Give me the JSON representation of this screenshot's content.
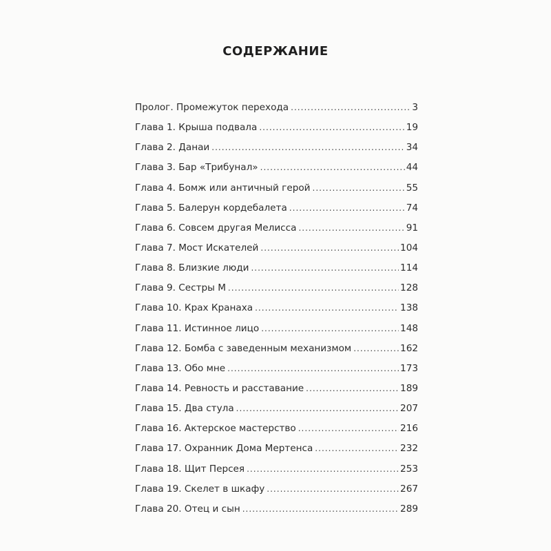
{
  "title": "СОДЕРЖАНИЕ",
  "entries": [
    {
      "label": "Пролог. Промежуток перехода",
      "page": "3"
    },
    {
      "label": "Глава 1. Крыша подвала",
      "page": "19"
    },
    {
      "label": "Глава 2. Данаи",
      "page": "34"
    },
    {
      "label": "Глава 3. Бар «Трибунал»",
      "page": "44"
    },
    {
      "label": "Глава 4. Бомж или античный герой",
      "page": "55"
    },
    {
      "label": "Глава 5. Балерун кордебалета",
      "page": "74"
    },
    {
      "label": "Глава 6. Совсем другая Мелисса",
      "page": "91"
    },
    {
      "label": "Глава 7. Мост Искателей",
      "page": "104"
    },
    {
      "label": "Глава 8. Близкие люди",
      "page": "114"
    },
    {
      "label": "Глава 9. Сестры М",
      "page": "128"
    },
    {
      "label": "Глава 10. Крах Кранаха",
      "page": "138"
    },
    {
      "label": "Глава 11. Истинное лицо",
      "page": "148"
    },
    {
      "label": "Глава 12. Бомба с заведенным механизмом",
      "page": "162"
    },
    {
      "label": "Глава 13. Обо мне",
      "page": "173"
    },
    {
      "label": "Глава 14. Ревность и расставание",
      "page": "189"
    },
    {
      "label": "Глава 15. Два стула",
      "page": "207"
    },
    {
      "label": "Глава 16. Актерское мастерство",
      "page": "216"
    },
    {
      "label": "Глава 17. Охранник Дома Мертенса",
      "page": "232"
    },
    {
      "label": "Глава 18. Щит Персея",
      "page": "253"
    },
    {
      "label": "Глава 19. Скелет в шкафу",
      "page": "267"
    },
    {
      "label": "Глава 20. Отец и сын",
      "page": "289"
    }
  ]
}
